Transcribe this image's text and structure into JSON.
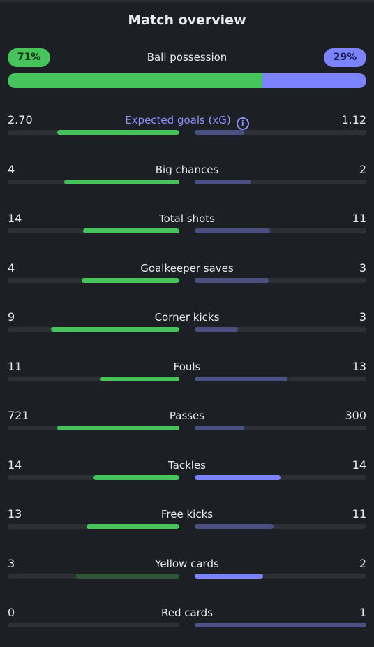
{
  "title": "Match overview",
  "possession": {
    "label": "Ball possession",
    "home": "71%",
    "away": "29%",
    "home_fraction": 0.71
  },
  "colors": {
    "home_accent": "#46c35a",
    "away_accent": "#7b83ff",
    "away_muted": "#4a5080",
    "home_muted": "#2e5536",
    "track": "#2d3136",
    "background": "#1c1f23"
  },
  "stats": [
    {
      "label": "Expected goals (xG)",
      "home": "2.70",
      "away": "1.12",
      "home_fill": 0.71,
      "away_fill": 0.29,
      "info_icon": "info-icon",
      "accent": true
    },
    {
      "label": "Big chances",
      "home": "4",
      "away": "2",
      "home_fill": 0.67,
      "away_fill": 0.33
    },
    {
      "label": "Total shots",
      "home": "14",
      "away": "11",
      "home_fill": 0.56,
      "away_fill": 0.44
    },
    {
      "label": "Goalkeeper saves",
      "home": "4",
      "away": "3",
      "home_fill": 0.57,
      "away_fill": 0.43
    },
    {
      "label": "Corner kicks",
      "home": "9",
      "away": "3",
      "home_fill": 0.75,
      "away_fill": 0.25
    },
    {
      "label": "Fouls",
      "home": "11",
      "away": "13",
      "home_fill": 0.46,
      "away_fill": 0.54
    },
    {
      "label": "Passes",
      "home": "721",
      "away": "300",
      "home_fill": 0.71,
      "away_fill": 0.29
    },
    {
      "label": "Tackles",
      "home": "14",
      "away": "14",
      "home_fill": 0.5,
      "away_fill": 0.5,
      "away_highlight": true
    },
    {
      "label": "Free kicks",
      "home": "13",
      "away": "11",
      "home_fill": 0.54,
      "away_fill": 0.46
    },
    {
      "label": "Yellow cards",
      "home": "3",
      "away": "2",
      "home_fill": 0.6,
      "away_fill": 0.4,
      "home_dim": true,
      "away_highlight": true
    },
    {
      "label": "Red cards",
      "home": "0",
      "away": "1",
      "home_fill": 0.0,
      "away_fill": 1.0
    }
  ]
}
